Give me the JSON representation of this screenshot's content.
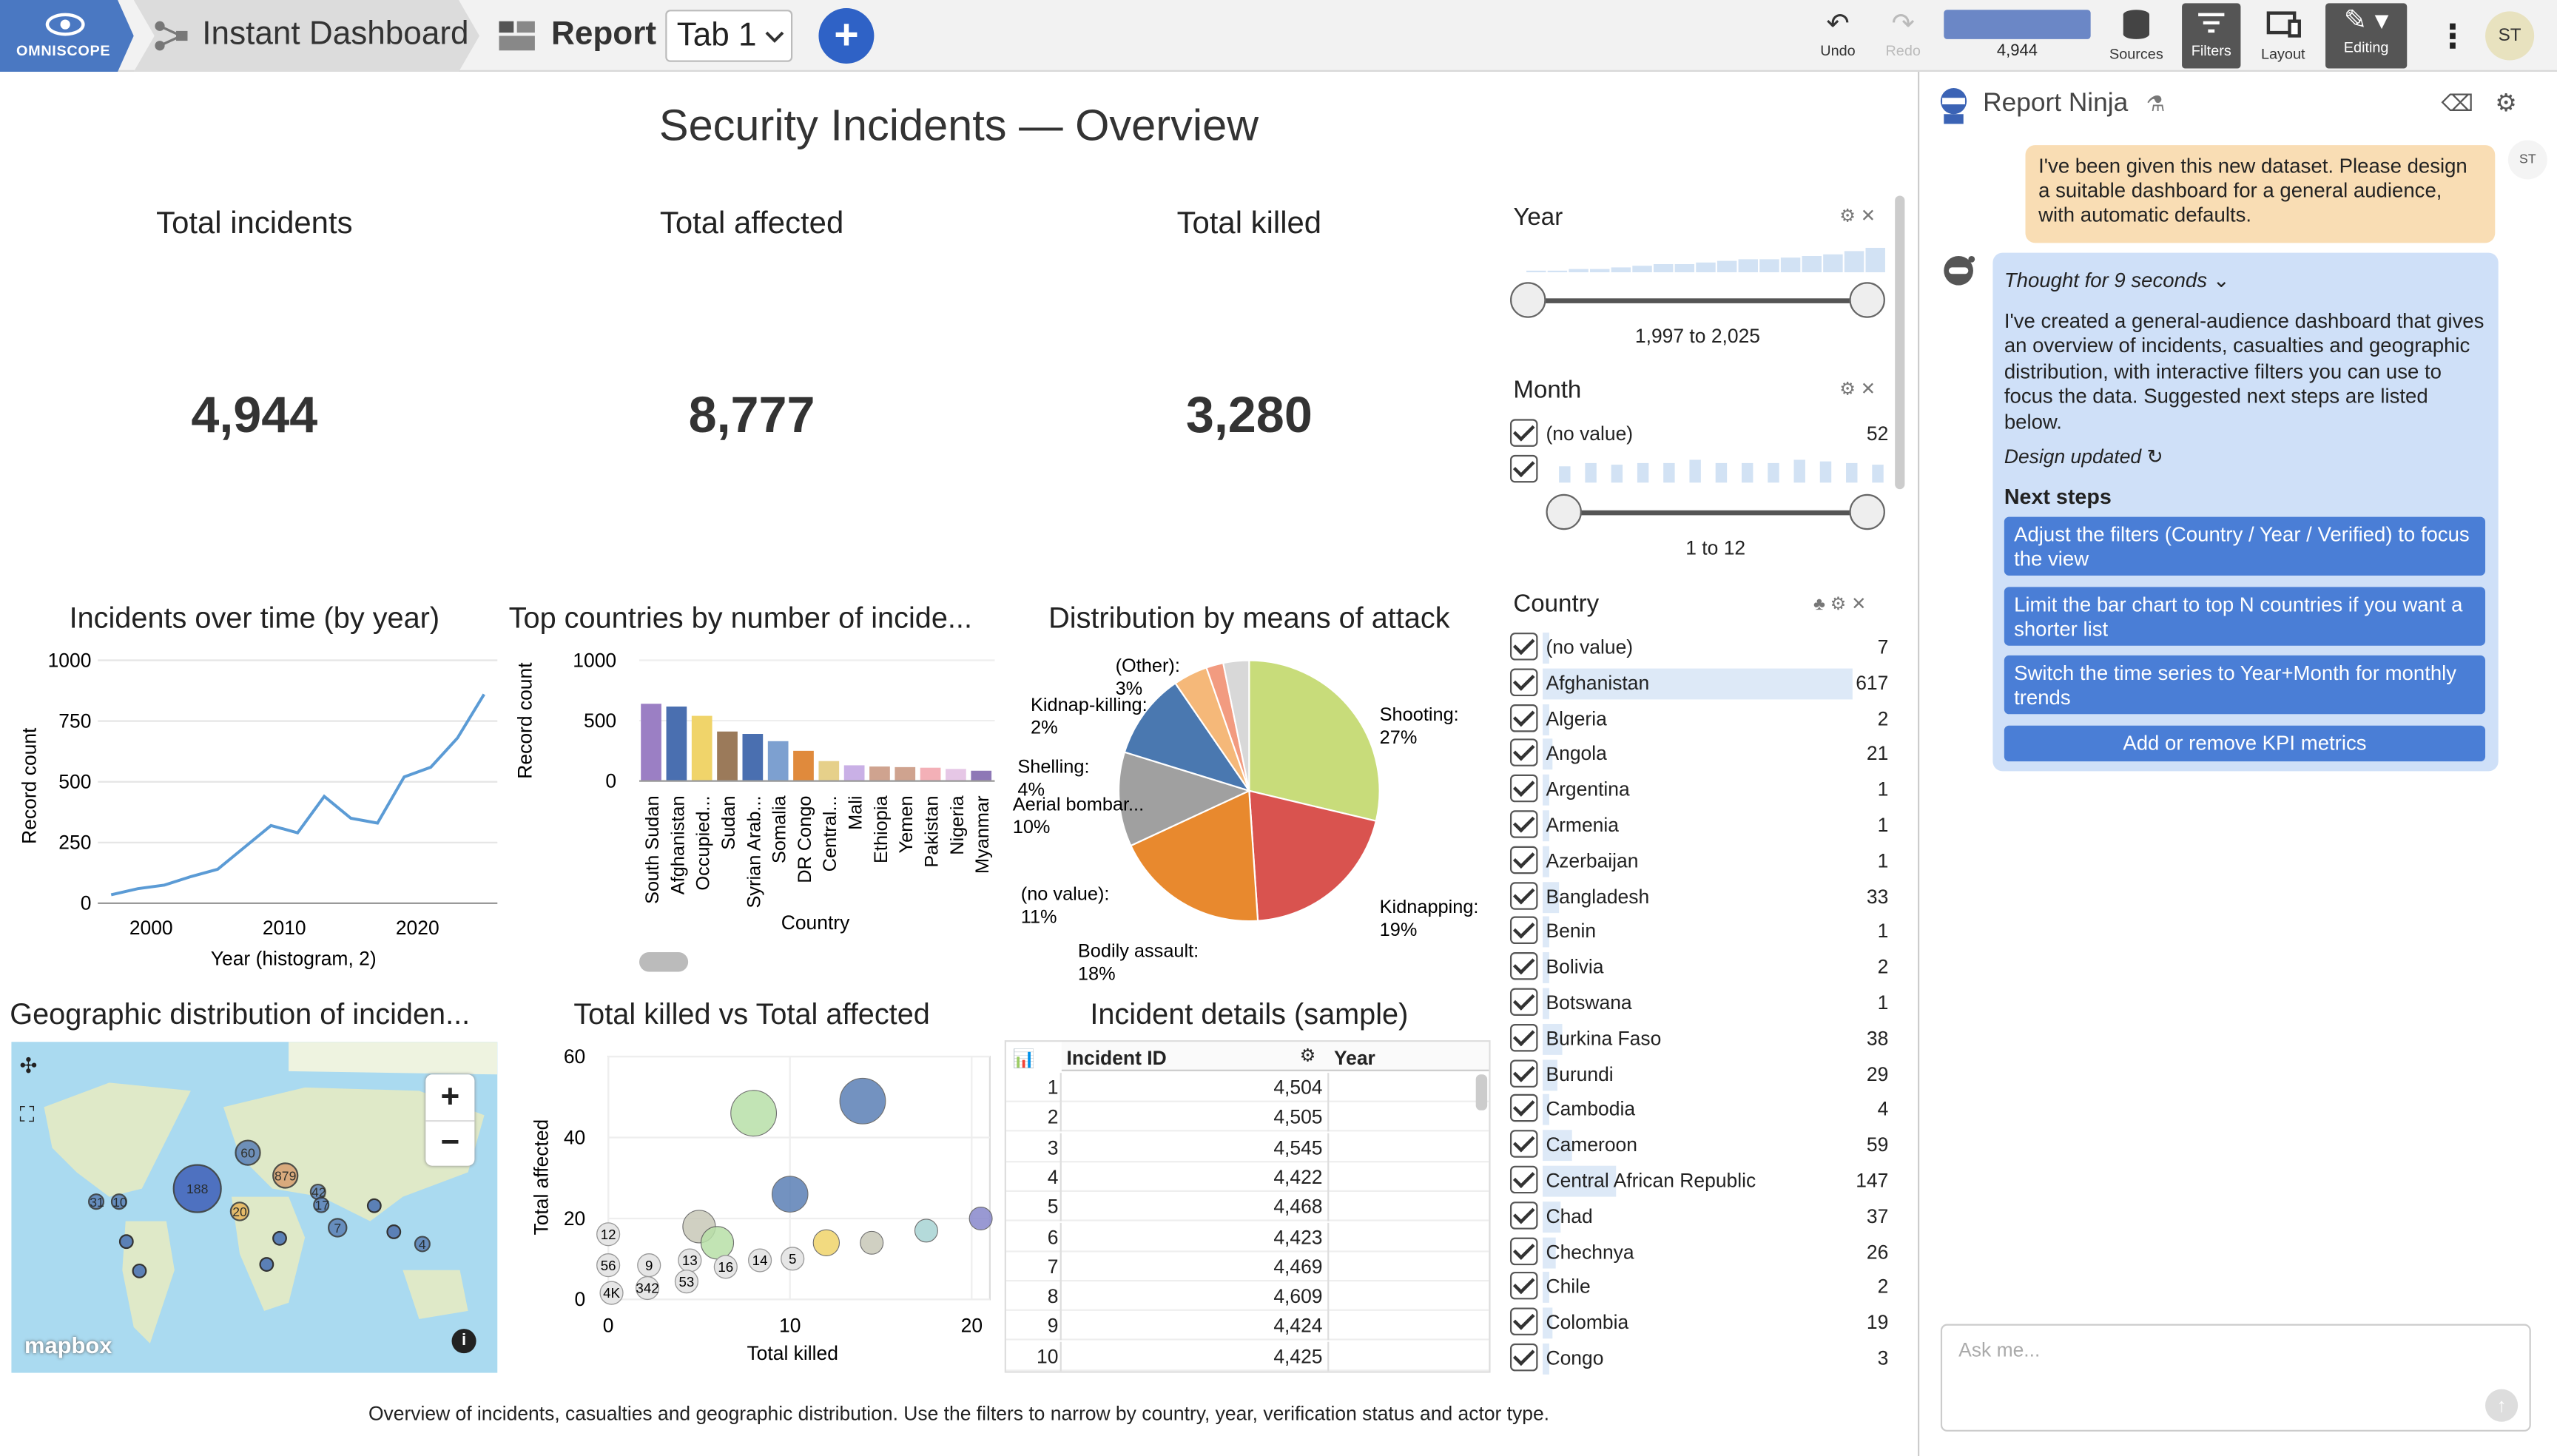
{
  "app": {
    "logo_text": "OMNISCOPE",
    "project": "Instant Dashboard",
    "section": "Report",
    "tab": "Tab 1",
    "add_label": "+"
  },
  "toolbar": {
    "undo": "Undo",
    "redo": "Redo",
    "record_count": "4,944",
    "sources": "Sources",
    "filters": "Filters",
    "layout": "Layout",
    "editing": "Editing",
    "user_initials": "ST"
  },
  "report": {
    "title": "Security Incidents — Overview",
    "kpis": [
      {
        "label": "Total incidents",
        "value": "4,944"
      },
      {
        "label": "Total affected",
        "value": "8,777"
      },
      {
        "label": "Total killed",
        "value": "3,280"
      }
    ],
    "footer": "Overview of incidents, casualties and geographic distribution. Use the filters to narrow by country, year, verification status and actor type."
  },
  "line_chart": {
    "title": "Incidents over time (by year)",
    "xlabel": "Year (histogram, 2)",
    "ylabel": "Record count",
    "yticks": [
      "0",
      "250",
      "500",
      "750",
      "1000"
    ],
    "xticks": [
      "2000",
      "2010",
      "2020"
    ]
  },
  "bar_chart": {
    "title": "Top countries by number of incide...",
    "xlabel": "Country",
    "ylabel": "Record count",
    "yticks": [
      "0",
      "500",
      "1000"
    ]
  },
  "pie_chart": {
    "title": "Distribution by means of attack"
  },
  "map": {
    "title": "Geographic distribution of inciden...",
    "zoom_in": "+",
    "zoom_out": "−",
    "brand": "mapbox",
    "info": "i",
    "bubbles": [
      "31",
      "10",
      "188",
      "60",
      "20",
      "879",
      "42",
      "17",
      "7",
      "4"
    ]
  },
  "scatter": {
    "title": "Total killed vs Total affected",
    "xlabel": "Total killed",
    "ylabel": "Total affected",
    "xticks": [
      "0",
      "10",
      "20"
    ],
    "yticks": [
      "0",
      "20",
      "40",
      "60"
    ],
    "labels": [
      "12",
      "56",
      "9",
      "13",
      "16",
      "14",
      "5",
      "4K",
      "342",
      "53"
    ]
  },
  "table": {
    "title": "Incident details (sample)",
    "columns": [
      "Incident ID",
      "Year"
    ],
    "rows": [
      {
        "n": "1",
        "id": "4,504"
      },
      {
        "n": "2",
        "id": "4,505"
      },
      {
        "n": "3",
        "id": "4,545"
      },
      {
        "n": "4",
        "id": "4,422"
      },
      {
        "n": "5",
        "id": "4,468"
      },
      {
        "n": "6",
        "id": "4,423"
      },
      {
        "n": "7",
        "id": "4,469"
      },
      {
        "n": "8",
        "id": "4,609"
      },
      {
        "n": "9",
        "id": "4,424"
      },
      {
        "n": "10",
        "id": "4,425"
      }
    ]
  },
  "filters": {
    "year": {
      "title": "Year",
      "range": "1,997 to 2,025"
    },
    "month": {
      "title": "Month",
      "no_value": "(no value)",
      "no_value_count": "52",
      "range": "1 to 12"
    },
    "country": {
      "title": "Country",
      "items": [
        {
          "name": "(no value)",
          "count": "7"
        },
        {
          "name": "Afghanistan",
          "count": "617"
        },
        {
          "name": "Algeria",
          "count": "2"
        },
        {
          "name": "Angola",
          "count": "21"
        },
        {
          "name": "Argentina",
          "count": "1"
        },
        {
          "name": "Armenia",
          "count": "1"
        },
        {
          "name": "Azerbaijan",
          "count": "1"
        },
        {
          "name": "Bangladesh",
          "count": "33"
        },
        {
          "name": "Benin",
          "count": "1"
        },
        {
          "name": "Bolivia",
          "count": "2"
        },
        {
          "name": "Botswana",
          "count": "1"
        },
        {
          "name": "Burkina Faso",
          "count": "38"
        },
        {
          "name": "Burundi",
          "count": "29"
        },
        {
          "name": "Cambodia",
          "count": "4"
        },
        {
          "name": "Cameroon",
          "count": "59"
        },
        {
          "name": "Central African Republic",
          "count": "147"
        },
        {
          "name": "Chad",
          "count": "37"
        },
        {
          "name": "Chechnya",
          "count": "26"
        },
        {
          "name": "Chile",
          "count": "2"
        },
        {
          "name": "Colombia",
          "count": "19"
        },
        {
          "name": "Congo",
          "count": "3"
        }
      ]
    }
  },
  "ninja": {
    "title": "Report Ninja",
    "user_initials": "ST",
    "user_message": "I've been given this new dataset. Please design a suitable dashboard for a general audience, with automatic defaults.",
    "thought": "Thought for 9 seconds",
    "reply": "I've created a general-audience dashboard that gives an overview of incidents, casualties and geographic distribution, with interactive filters you can use to focus the data. Suggested next steps are listed below.",
    "design_updated": "Design updated",
    "next_steps_title": "Next steps",
    "next_steps": [
      "Adjust the filters (Country / Year / Verified) to focus the view",
      "Limit the bar chart to top N countries if you want a shorter list",
      "Switch the time series to Year+Month for monthly trends",
      "Add or remove KPI metrics"
    ],
    "ask_placeholder": "Ask me..."
  },
  "chart_data": [
    {
      "type": "line",
      "title": "Incidents over time (by year)",
      "xlabel": "Year (histogram, 2)",
      "ylabel": "Record count",
      "xlim": [
        1996,
        2026
      ],
      "ylim": [
        0,
        1000
      ],
      "x": [
        1997,
        1999,
        2001,
        2003,
        2005,
        2007,
        2009,
        2011,
        2013,
        2015,
        2017,
        2019,
        2021,
        2023,
        2025
      ],
      "values": [
        35,
        60,
        75,
        110,
        140,
        230,
        320,
        290,
        440,
        350,
        330,
        520,
        560,
        680,
        860
      ]
    },
    {
      "type": "bar",
      "title": "Top countries by number of incide...",
      "xlabel": "Country",
      "ylabel": "Record count",
      "ylim": [
        0,
        1000
      ],
      "categories": [
        "South Sudan",
        "Afghanistan",
        "Occupied...",
        "Sudan",
        "Syrian Arab...",
        "Somalia",
        "DR Congo",
        "Central...",
        "Mali",
        "Ethiopia",
        "Yemen",
        "Pakistan",
        "Nigeria",
        "Myanmar"
      ],
      "values": [
        640,
        617,
        540,
        410,
        390,
        330,
        250,
        165,
        130,
        120,
        115,
        110,
        100,
        85
      ],
      "colors": [
        "#9b7fc4",
        "#4a6fb0",
        "#f0d46a",
        "#9b7a5a",
        "#4a6fb0",
        "#7da0d0",
        "#e08a3c",
        "#e6d08a",
        "#c9b0e6",
        "#cfa38f",
        "#cfa38f",
        "#f3b0b7",
        "#e6c7e6",
        "#8e78b6"
      ]
    },
    {
      "type": "pie",
      "title": "Distribution by means of attack",
      "categories": [
        "Shooting",
        "Kidnapping",
        "Bodily assault",
        "(no value)",
        "Aerial bombar...",
        "Shelling",
        "Kidnap-killing",
        "(Other)"
      ],
      "values": [
        27,
        19,
        18,
        11,
        10,
        4,
        2,
        3
      ],
      "labels": [
        "Shooting: 27%",
        "Kidnapping: 19%",
        "Bodily assault: 18%",
        "(no value): 11%",
        "Aerial bombar... 10%",
        "Shelling: 4%",
        "Kidnap-killing: 2%",
        "(Other): 3%"
      ],
      "colors": [
        "#c8dc7a",
        "#d9534f",
        "#e8892e",
        "#a0a0a0",
        "#4a78b0",
        "#f5b879",
        "#f29b80",
        "#d8d8d8"
      ]
    },
    {
      "type": "scatter",
      "title": "Total killed vs Total affected",
      "xlabel": "Total killed",
      "ylabel": "Total affected",
      "xlim": [
        0,
        21
      ],
      "ylim": [
        0,
        60
      ],
      "points": [
        [
          8,
          46,
          14,
          "#b8e0a8"
        ],
        [
          14,
          49,
          14,
          "#5b80b6"
        ],
        [
          10,
          26,
          11,
          "#5b80b6"
        ],
        [
          5,
          18,
          10,
          "#c8c8b8"
        ],
        [
          6,
          14,
          10,
          "#b8e0a8"
        ],
        [
          12,
          14,
          8,
          "#f0d46a"
        ],
        [
          14.5,
          14,
          7,
          "#c8c8b8"
        ],
        [
          17.5,
          17,
          7,
          "#a8d4d4"
        ],
        [
          20.5,
          20,
          7,
          "#8888cc"
        ]
      ]
    }
  ]
}
